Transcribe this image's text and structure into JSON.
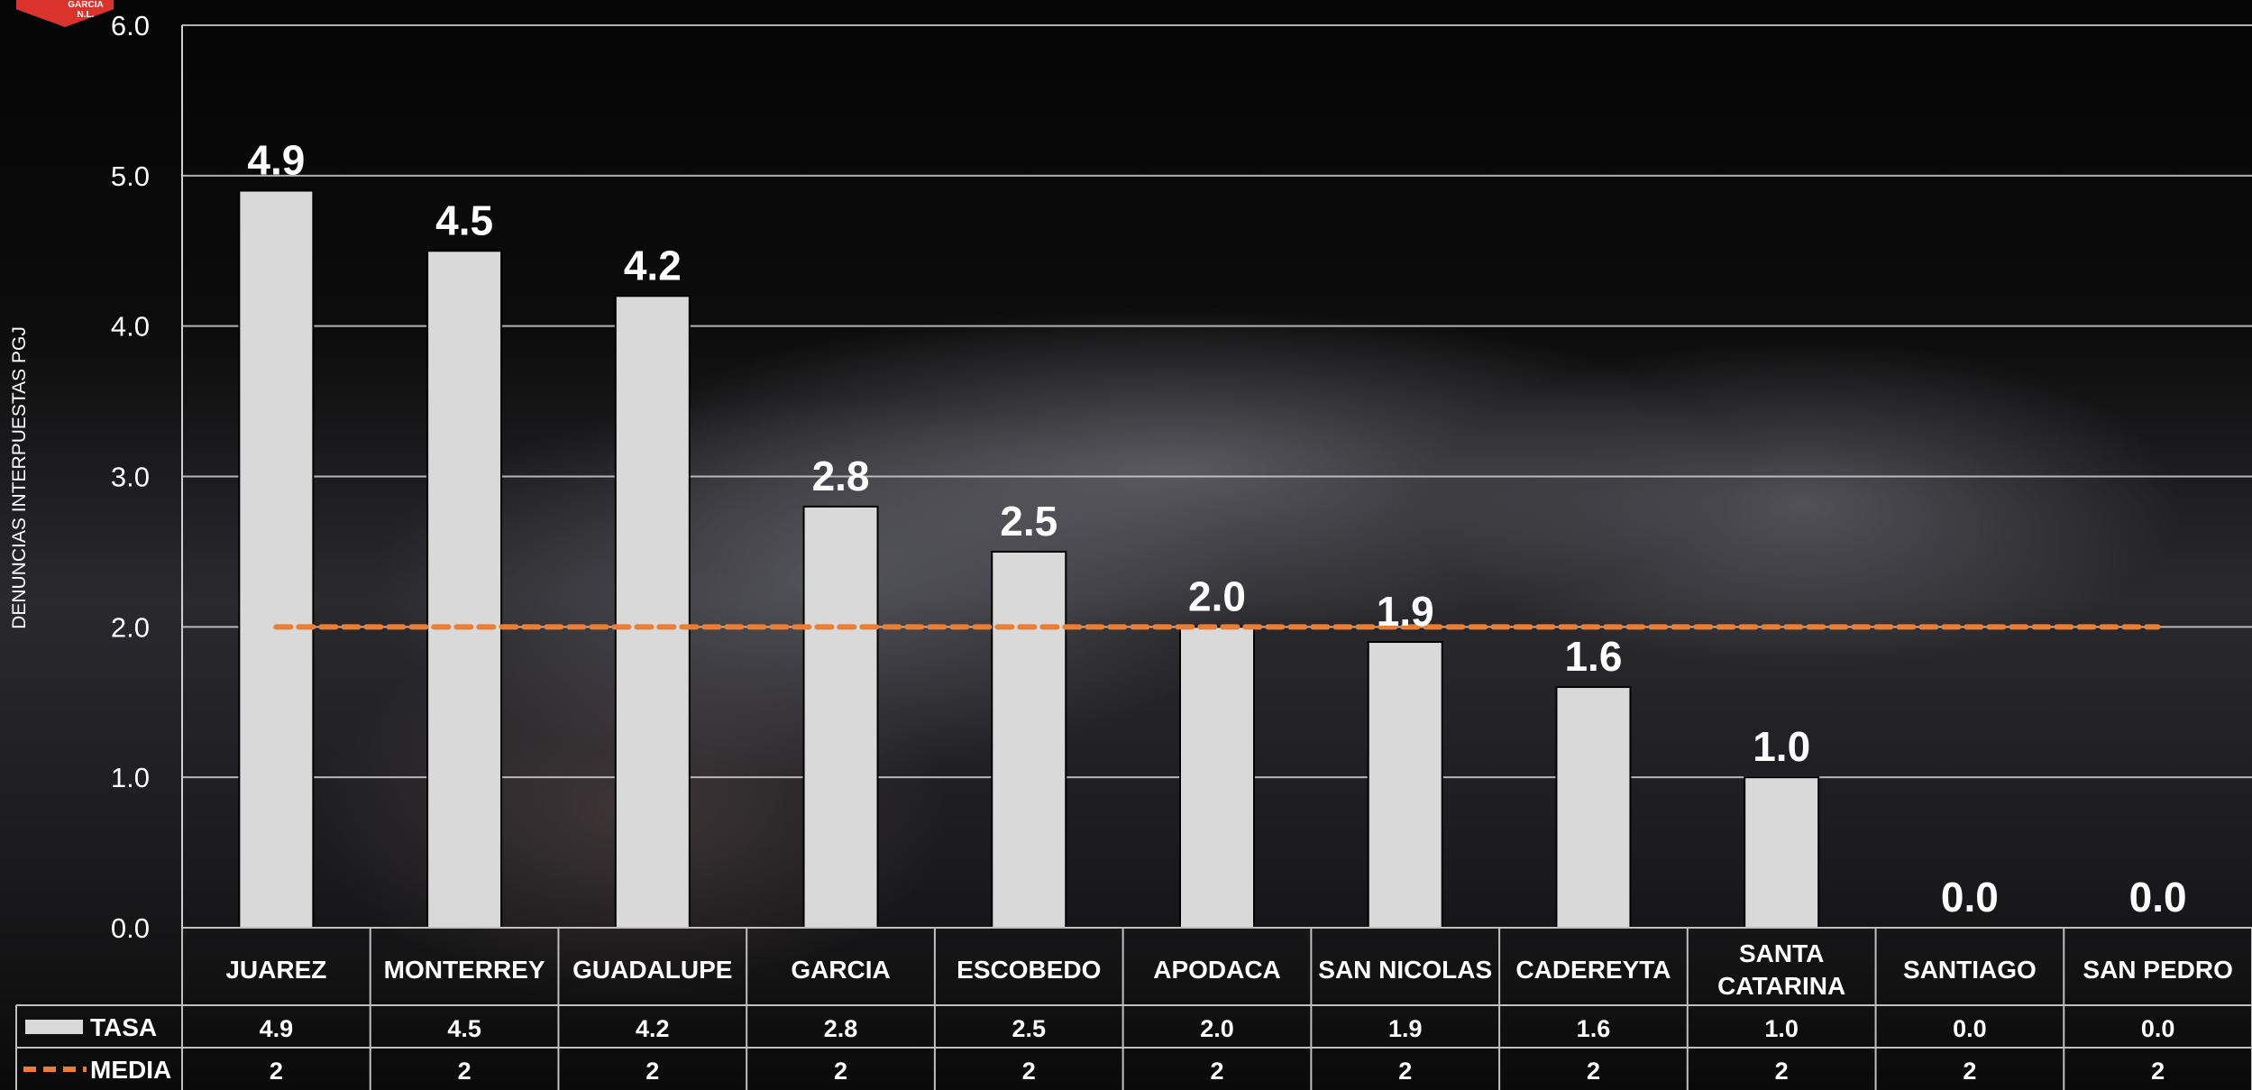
{
  "logo": {
    "line1": "GARCIA",
    "line2": "N.L."
  },
  "colors": {
    "bar": "#d9d9d9",
    "media": "#ed7d31",
    "text": "#ffffff",
    "grid": "#d0d0d0"
  },
  "chart_data": {
    "type": "bar",
    "ylabel": "DENUNCIAS INTERPUESTAS PGJ",
    "ylim": [
      0,
      6
    ],
    "yticks": [
      "0.0",
      "1.0",
      "2.0",
      "3.0",
      "4.0",
      "5.0",
      "6.0"
    ],
    "grid": true,
    "categories": [
      "JUAREZ",
      "MONTERREY",
      "GUADALUPE",
      "GARCIA",
      "ESCOBEDO",
      "APODACA",
      "SAN NICOLAS",
      "CADEREYTA",
      "SANTA CATARINA",
      "SANTIAGO",
      "SAN PEDRO"
    ],
    "series": [
      {
        "name": "TASA",
        "kind": "bar",
        "values": [
          4.9,
          4.5,
          4.2,
          2.8,
          2.5,
          2.0,
          1.9,
          1.6,
          1.0,
          0.0,
          0.0
        ],
        "labels": [
          "4.9",
          "4.5",
          "4.2",
          "2.8",
          "2.5",
          "2.0",
          "1.9",
          "1.6",
          "1.0",
          "0.0",
          "0.0"
        ]
      },
      {
        "name": "MEDIA",
        "kind": "line",
        "values": [
          2,
          2,
          2,
          2,
          2,
          2,
          2,
          2,
          2,
          2,
          2
        ],
        "labels": [
          "2",
          "2",
          "2",
          "2",
          "2",
          "2",
          "2",
          "2",
          "2",
          "2",
          "2"
        ]
      }
    ],
    "legend": "data-table"
  }
}
